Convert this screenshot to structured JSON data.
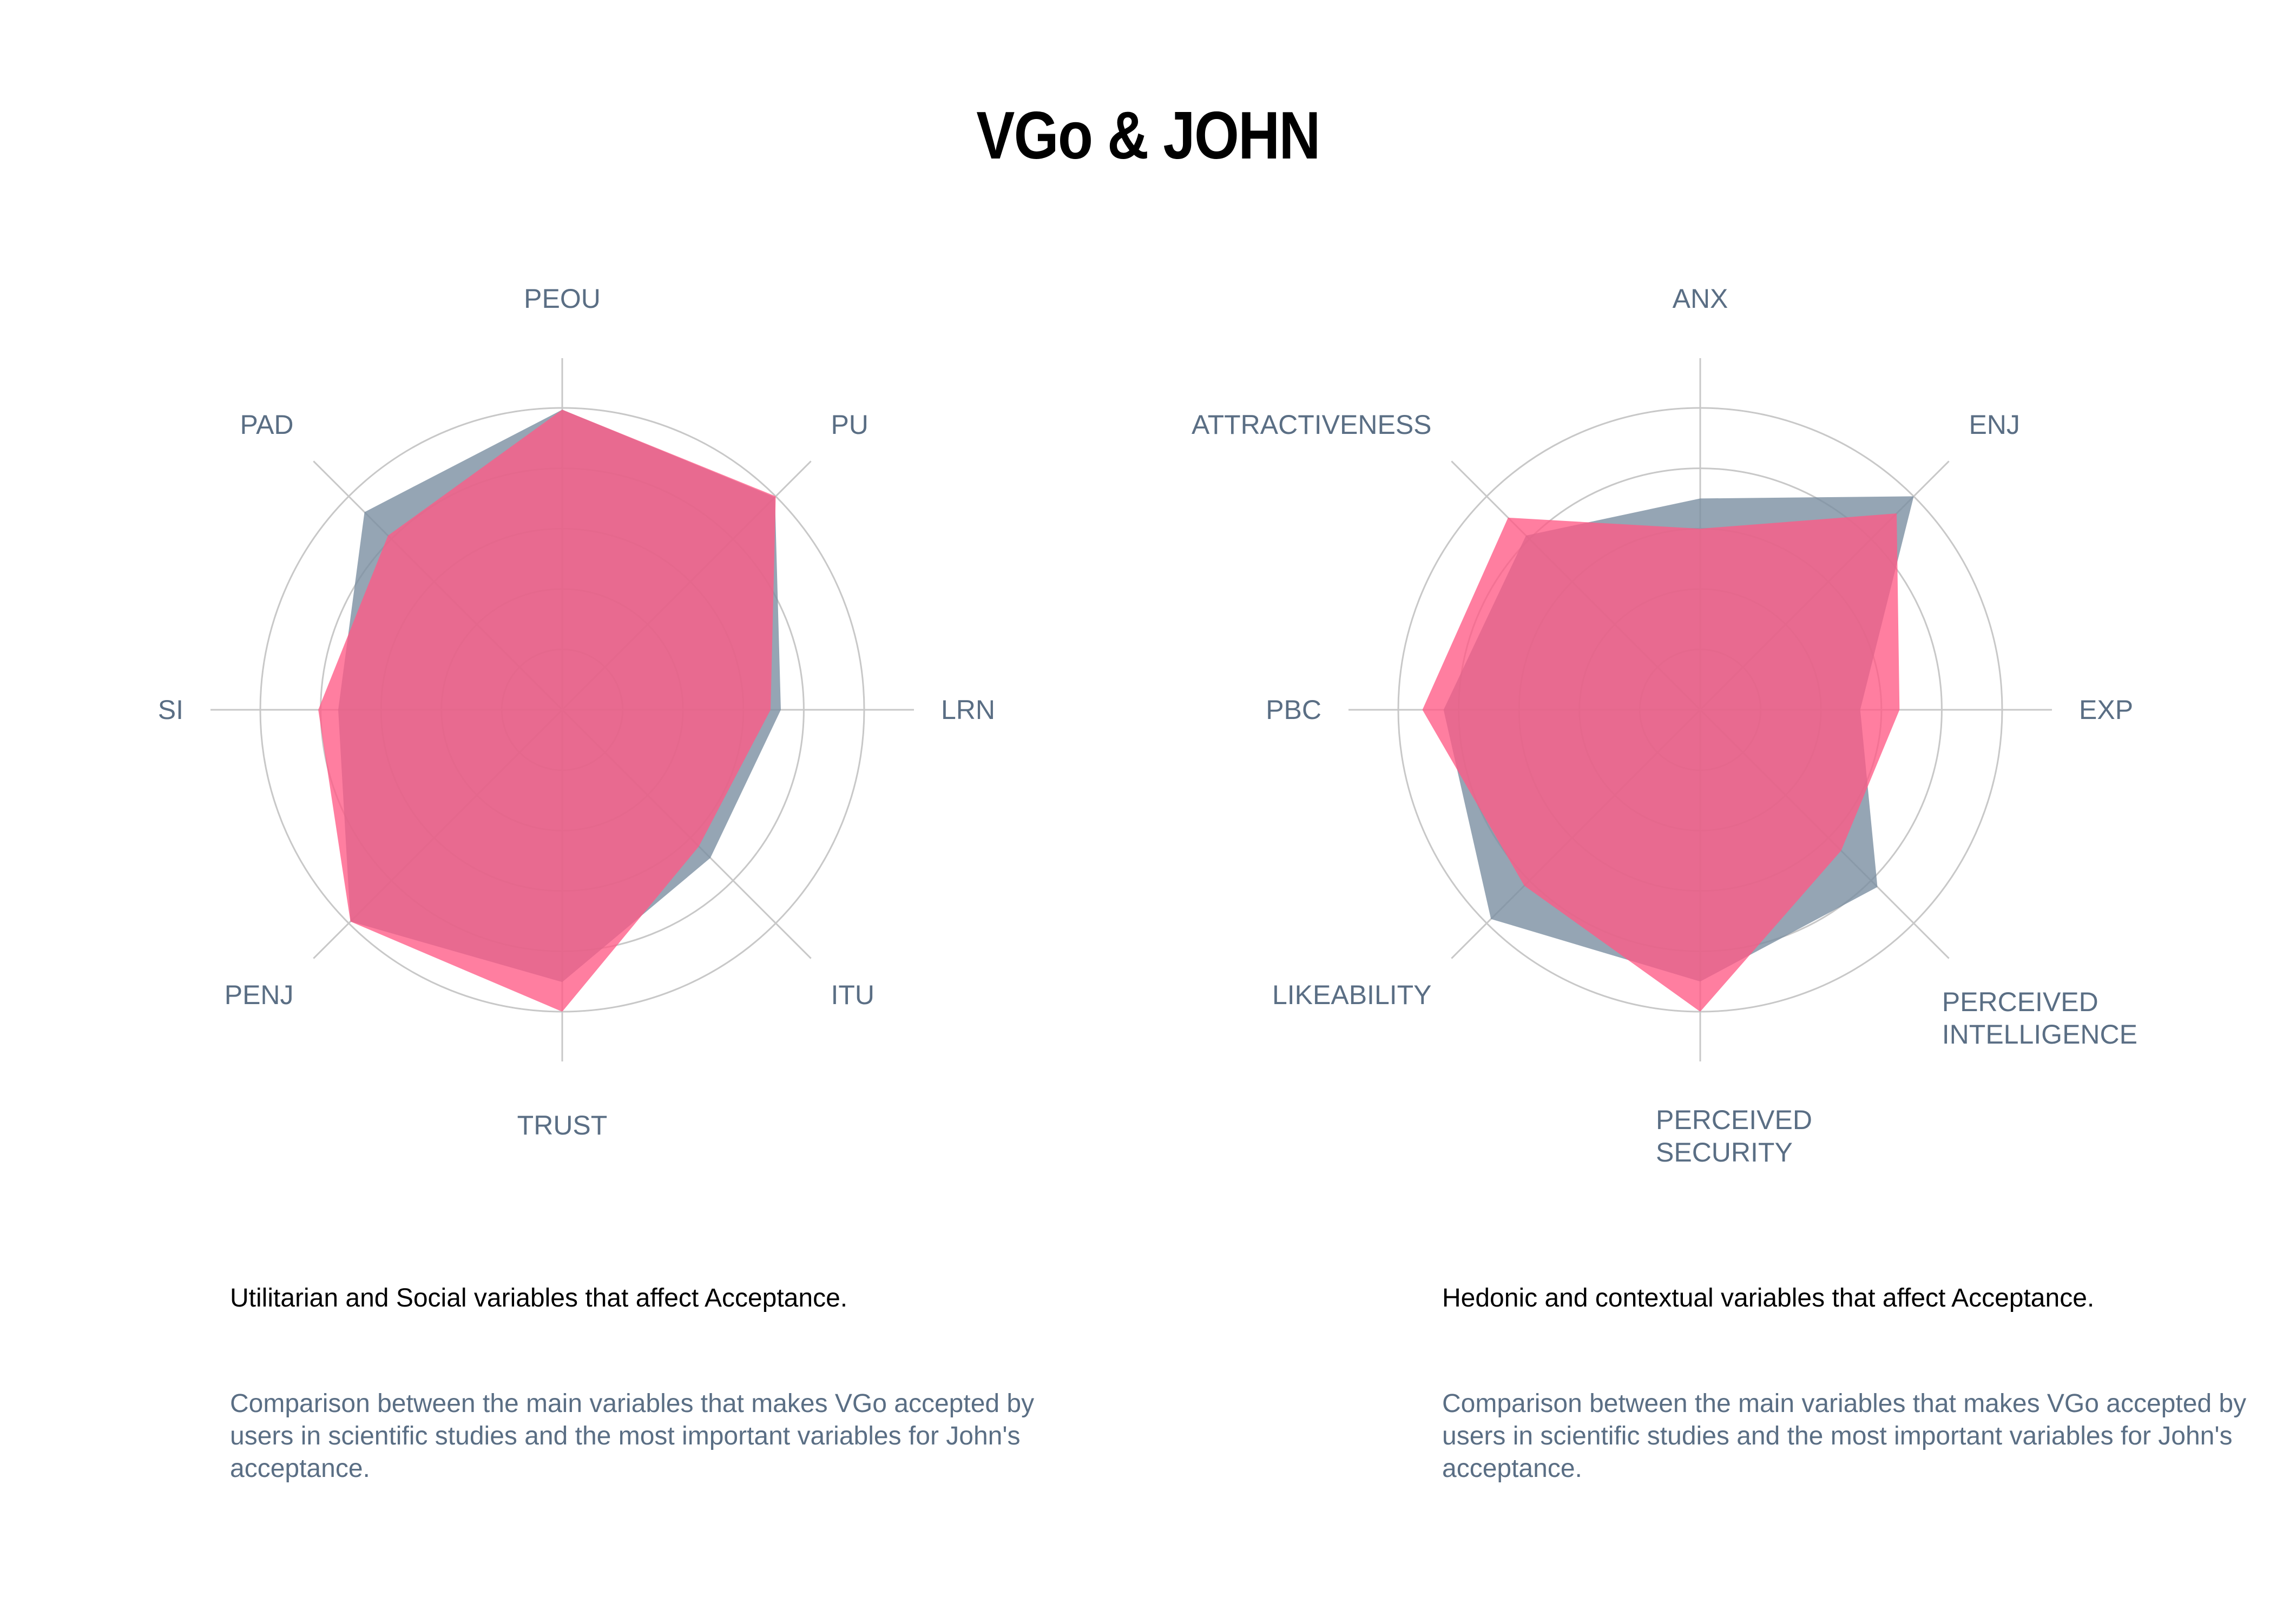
{
  "title": "VGo & JOHN",
  "colors": {
    "vgo": "#7b8fa1",
    "john": "#ff5a85",
    "grid": "#c8c8c8"
  },
  "chart_data": [
    {
      "type": "radar",
      "axes": [
        "PEOU",
        "PU",
        "LRN",
        "ITU",
        "TRUST",
        "PENJ",
        "SI",
        "PAD"
      ],
      "rmax": 5,
      "grid_levels": [
        1,
        2,
        3,
        4,
        5
      ],
      "series": [
        {
          "key": "vgo",
          "values": [
            4.97,
            4.98,
            3.62,
            3.47,
            4.51,
            4.96,
            3.71,
            4.63
          ]
        },
        {
          "key": "john",
          "values": [
            4.97,
            5.0,
            3.45,
            3.2,
            5.0,
            4.96,
            4.04,
            4.08
          ]
        }
      ]
    },
    {
      "type": "radar",
      "axes": [
        "ANX",
        "ENJ",
        "EXP",
        "PERCEIVED INTELLIGENCE",
        "PERCEIVED SECURITY",
        "LIKEABILITY",
        "PBC",
        "ATTRACTIVENESS"
      ],
      "rmax": 5,
      "grid_levels": [
        1,
        2,
        3,
        4,
        5
      ],
      "series": [
        {
          "key": "vgo",
          "values": [
            3.5,
            5.0,
            2.65,
            4.15,
            4.5,
            4.9,
            4.25,
            4.08
          ]
        },
        {
          "key": "john",
          "values": [
            3.0,
            4.6,
            3.3,
            3.3,
            5.0,
            4.12,
            4.6,
            4.5
          ]
        }
      ]
    }
  ],
  "captions": [
    {
      "title": "Utilitarian and Social variables that affect Acceptance.",
      "description": "Comparison between the main variables that makes VGo accepted by users in scientific studies and the most important variables for John's acceptance."
    },
    {
      "title": "Hedonic and contextual variables that affect Acceptance.",
      "description": "Comparison between the main variables that makes VGo accepted by users in scientific studies and the most important variables for John's acceptance."
    }
  ]
}
